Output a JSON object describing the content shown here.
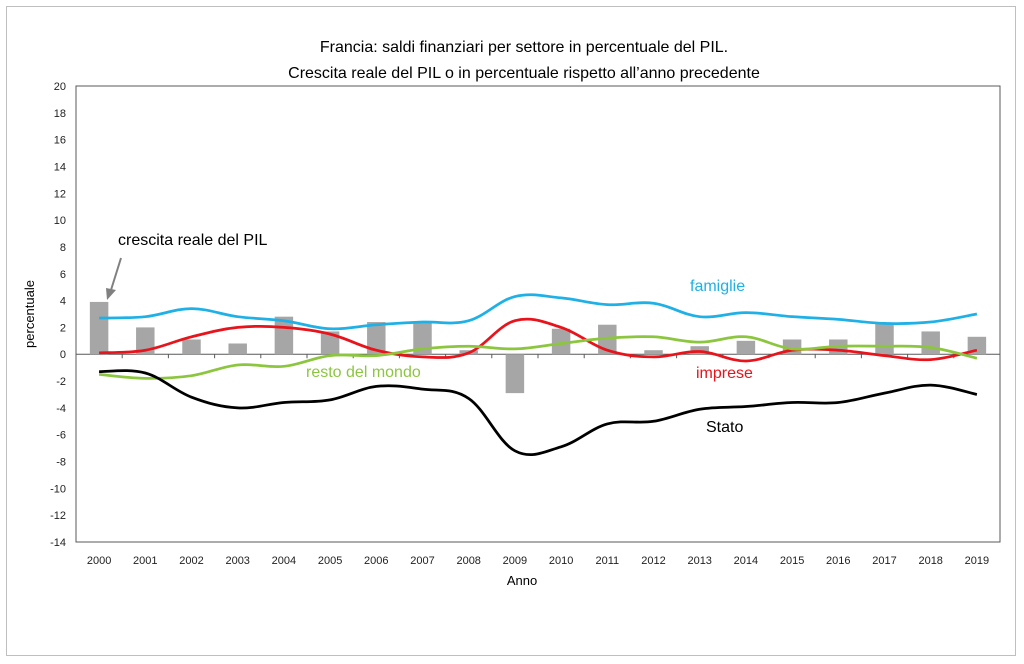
{
  "chart_data": {
    "type": "bar+line",
    "title_lines": [
      "Francia: saldi finanziari  per settore in percentuale del PIL.",
      "Crescita reale del PIL o in percentuale rispetto all’anno precedente"
    ],
    "xlabel": "Anno",
    "ylabel": "percentuale",
    "ylim": [
      -14,
      20
    ],
    "yticks": [
      20,
      18,
      16,
      14,
      12,
      10,
      8,
      6,
      4,
      2,
      0,
      -2,
      -4,
      -6,
      -8,
      -10,
      -12,
      -14
    ],
    "categories": [
      "2000",
      "2001",
      "2002",
      "2003",
      "2004",
      "2005",
      "2006",
      "2007",
      "2008",
      "2009",
      "2010",
      "2011",
      "2012",
      "2013",
      "2014",
      "2015",
      "2016",
      "2017",
      "2018",
      "2019"
    ],
    "bars": {
      "name": "crescita reale del PIL",
      "color": "#a6a6a6",
      "values": [
        3.9,
        2.0,
        1.1,
        0.8,
        2.8,
        1.7,
        2.4,
        2.4,
        0.3,
        -2.9,
        1.9,
        2.2,
        0.3,
        0.6,
        1.0,
        1.1,
        1.1,
        2.3,
        1.7,
        1.3
      ]
    },
    "series": [
      {
        "name": "famiglie",
        "color": "#1fb0e6",
        "values": [
          2.7,
          2.8,
          3.4,
          2.8,
          2.5,
          1.9,
          2.2,
          2.4,
          2.5,
          4.3,
          4.2,
          3.7,
          3.8,
          2.8,
          3.1,
          2.8,
          2.6,
          2.3,
          2.4,
          3.0
        ]
      },
      {
        "name": "imprese",
        "color": "#e8131b",
        "values": [
          0.1,
          0.3,
          1.3,
          2.0,
          2.0,
          1.5,
          0.3,
          -0.2,
          0.1,
          2.5,
          2.0,
          0.3,
          -0.2,
          0.2,
          -0.5,
          0.3,
          0.3,
          -0.1,
          -0.4,
          0.3
        ]
      },
      {
        "name": "resto del mondo",
        "color": "#8cc63f",
        "values": [
          -1.5,
          -1.8,
          -1.6,
          -0.8,
          -0.9,
          -0.1,
          -0.1,
          0.4,
          0.6,
          0.4,
          0.8,
          1.2,
          1.3,
          0.9,
          1.3,
          0.4,
          0.6,
          0.6,
          0.5,
          -0.3
        ]
      },
      {
        "name": "Stato",
        "color": "#000000",
        "values": [
          -1.3,
          -1.4,
          -3.2,
          -4.0,
          -3.6,
          -3.4,
          -2.4,
          -2.6,
          -3.3,
          -7.2,
          -6.9,
          -5.2,
          -5.0,
          -4.1,
          -3.9,
          -3.6,
          -3.6,
          -2.9,
          -2.3,
          -3.0
        ]
      }
    ],
    "annotations": {
      "gdp_label": "crescita reale del PIL",
      "famiglie": "famiglie",
      "imprese": "imprese",
      "resto": "resto del mondo",
      "stato": "Stato"
    },
    "grid": false,
    "legend": "none (inline labels)"
  }
}
